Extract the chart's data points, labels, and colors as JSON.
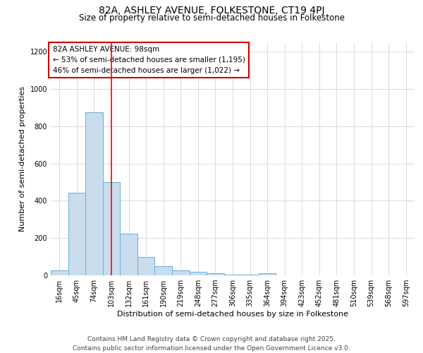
{
  "title": "82A, ASHLEY AVENUE, FOLKESTONE, CT19 4PJ",
  "subtitle": "Size of property relative to semi-detached houses in Folkestone",
  "xlabel": "Distribution of semi-detached houses by size in Folkestone",
  "ylabel": "Number of semi-detached properties",
  "categories": [
    "16sqm",
    "45sqm",
    "74sqm",
    "103sqm",
    "132sqm",
    "161sqm",
    "190sqm",
    "219sqm",
    "248sqm",
    "277sqm",
    "306sqm",
    "335sqm",
    "364sqm",
    "394sqm",
    "423sqm",
    "452sqm",
    "481sqm",
    "510sqm",
    "539sqm",
    "568sqm",
    "597sqm"
  ],
  "values": [
    25,
    445,
    875,
    500,
    225,
    100,
    50,
    28,
    18,
    10,
    5,
    3,
    10,
    0,
    0,
    0,
    0,
    0,
    0,
    0,
    0
  ],
  "bar_color": "#c9ddef",
  "bar_edge_color": "#6aaed6",
  "red_line_x": 3.5,
  "annotation_text": "82A ASHLEY AVENUE: 98sqm\n← 53% of semi-detached houses are smaller (1,195)\n46% of semi-detached houses are larger (1,022) →",
  "annotation_box_color": "#ffffff",
  "annotation_box_edge_color": "#cc0000",
  "ylim": [
    0,
    1250
  ],
  "yticks": [
    0,
    200,
    400,
    600,
    800,
    1000,
    1200
  ],
  "footer_line1": "Contains HM Land Registry data © Crown copyright and database right 2025.",
  "footer_line2": "Contains public sector information licensed under the Open Government Licence v3.0.",
  "background_color": "#ffffff",
  "grid_color": "#cccccc",
  "title_fontsize": 10,
  "subtitle_fontsize": 8.5,
  "axis_label_fontsize": 8,
  "tick_fontsize": 7,
  "footer_fontsize": 6.5,
  "annotation_fontsize": 7.5
}
